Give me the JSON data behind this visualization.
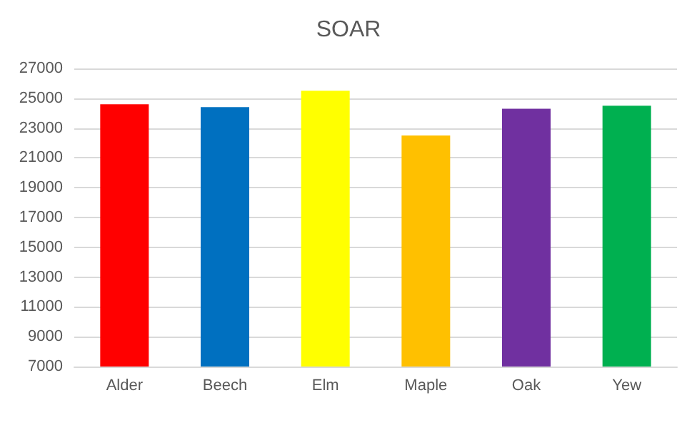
{
  "chart_data": {
    "type": "bar",
    "title": "SOAR",
    "categories": [
      "Alder",
      "Beech",
      "Elm",
      "Maple",
      "Oak",
      "Yew"
    ],
    "values": [
      24600,
      24400,
      25500,
      22500,
      24300,
      24500
    ],
    "colors": [
      "#ff0000",
      "#0070c0",
      "#ffff00",
      "#ffc000",
      "#7030a0",
      "#00b050"
    ],
    "ylim": [
      7000,
      27000
    ],
    "yticks": [
      7000,
      9000,
      11000,
      13000,
      15000,
      17000,
      19000,
      21000,
      23000,
      25000,
      27000
    ],
    "grid": "y"
  }
}
